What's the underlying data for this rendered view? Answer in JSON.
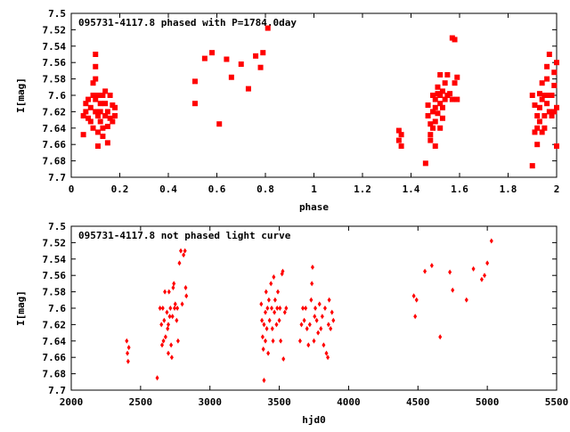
{
  "chart_data": [
    {
      "type": "scatter",
      "title": "095731-4117.8 phased with P=1784.0day",
      "xlabel": "phase",
      "ylabel": "I[mag]",
      "xlim": [
        0,
        2
      ],
      "ylim": [
        7.7,
        7.5
      ],
      "y_inverted": true,
      "grid": false,
      "marker_color": "#ff0000",
      "x_ticks": [
        "0",
        "0.2",
        "0.4",
        "0.6",
        "0.8",
        "1",
        "1.2",
        "1.4",
        "1.6",
        "1.8",
        "2"
      ],
      "y_ticks": [
        "7.5",
        "7.52",
        "7.54",
        "7.56",
        "7.58",
        "7.6",
        "7.62",
        "7.64",
        "7.66",
        "7.68",
        "7.7"
      ],
      "points": [
        [
          0.05,
          7.648
        ],
        [
          0.05,
          7.625
        ],
        [
          0.06,
          7.62
        ],
        [
          0.06,
          7.61
        ],
        [
          0.07,
          7.605
        ],
        [
          0.07,
          7.628
        ],
        [
          0.08,
          7.632
        ],
        [
          0.08,
          7.615
        ],
        [
          0.09,
          7.6
        ],
        [
          0.09,
          7.64
        ],
        [
          0.09,
          7.585
        ],
        [
          0.1,
          7.62
        ],
        [
          0.1,
          7.605
        ],
        [
          0.1,
          7.58
        ],
        [
          0.1,
          7.565
        ],
        [
          0.1,
          7.55
        ],
        [
          0.11,
          7.6
        ],
        [
          0.11,
          7.625
        ],
        [
          0.11,
          7.645
        ],
        [
          0.11,
          7.662
        ],
        [
          0.12,
          7.61
        ],
        [
          0.12,
          7.62
        ],
        [
          0.12,
          7.632
        ],
        [
          0.13,
          7.6
        ],
        [
          0.13,
          7.64
        ],
        [
          0.13,
          7.65
        ],
        [
          0.14,
          7.595
        ],
        [
          0.14,
          7.625
        ],
        [
          0.14,
          7.61
        ],
        [
          0.15,
          7.62
        ],
        [
          0.15,
          7.638
        ],
        [
          0.15,
          7.658
        ],
        [
          0.16,
          7.6
        ],
        [
          0.16,
          7.628
        ],
        [
          0.17,
          7.612
        ],
        [
          0.17,
          7.632
        ],
        [
          0.18,
          7.615
        ],
        [
          0.18,
          7.625
        ],
        [
          0.51,
          7.583
        ],
        [
          0.51,
          7.61
        ],
        [
          0.55,
          7.555
        ],
        [
          0.58,
          7.548
        ],
        [
          0.61,
          7.635
        ],
        [
          0.64,
          7.556
        ],
        [
          0.66,
          7.578
        ],
        [
          0.7,
          7.562
        ],
        [
          0.73,
          7.592
        ],
        [
          0.76,
          7.552
        ],
        [
          0.78,
          7.566
        ],
        [
          0.79,
          7.548
        ],
        [
          0.81,
          7.518
        ],
        [
          1.35,
          7.643
        ],
        [
          1.35,
          7.655
        ],
        [
          1.36,
          7.648
        ],
        [
          1.36,
          7.662
        ],
        [
          1.46,
          7.683
        ],
        [
          1.47,
          7.612
        ],
        [
          1.47,
          7.625
        ],
        [
          1.48,
          7.635
        ],
        [
          1.48,
          7.648
        ],
        [
          1.48,
          7.655
        ],
        [
          1.49,
          7.6
        ],
        [
          1.49,
          7.62
        ],
        [
          1.49,
          7.64
        ],
        [
          1.5,
          7.605
        ],
        [
          1.5,
          7.615
        ],
        [
          1.5,
          7.632
        ],
        [
          1.5,
          7.662
        ],
        [
          1.51,
          7.59
        ],
        [
          1.51,
          7.598
        ],
        [
          1.51,
          7.622
        ],
        [
          1.52,
          7.6
        ],
        [
          1.52,
          7.61
        ],
        [
          1.52,
          7.64
        ],
        [
          1.52,
          7.575
        ],
        [
          1.53,
          7.595
        ],
        [
          1.53,
          7.615
        ],
        [
          1.53,
          7.628
        ],
        [
          1.54,
          7.605
        ],
        [
          1.54,
          7.585
        ],
        [
          1.55,
          7.6
        ],
        [
          1.55,
          7.575
        ],
        [
          1.56,
          7.598
        ],
        [
          1.57,
          7.53
        ],
        [
          1.57,
          7.605
        ],
        [
          1.58,
          7.585
        ],
        [
          1.58,
          7.532
        ],
        [
          1.59,
          7.578
        ],
        [
          1.59,
          7.605
        ],
        [
          1.9,
          7.686
        ],
        [
          1.9,
          7.6
        ],
        [
          1.91,
          7.645
        ],
        [
          1.91,
          7.612
        ],
        [
          1.92,
          7.625
        ],
        [
          1.92,
          7.64
        ],
        [
          1.92,
          7.66
        ],
        [
          1.93,
          7.598
        ],
        [
          1.93,
          7.615
        ],
        [
          1.93,
          7.632
        ],
        [
          1.94,
          7.605
        ],
        [
          1.94,
          7.645
        ],
        [
          1.94,
          7.585
        ],
        [
          1.95,
          7.6
        ],
        [
          1.95,
          7.625
        ],
        [
          1.95,
          7.64
        ],
        [
          1.96,
          7.61
        ],
        [
          1.96,
          7.58
        ],
        [
          1.96,
          7.565
        ],
        [
          1.97,
          7.62
        ],
        [
          1.97,
          7.6
        ],
        [
          1.97,
          7.55
        ],
        [
          1.98,
          7.625
        ],
        [
          1.98,
          7.6
        ],
        [
          1.99,
          7.588
        ],
        [
          1.99,
          7.572
        ],
        [
          1.99,
          7.62
        ],
        [
          2.0,
          7.662
        ],
        [
          2.0,
          7.615
        ],
        [
          2.0,
          7.56
        ]
      ]
    },
    {
      "type": "scatter",
      "title": "095731-4117.8 not phased light curve",
      "xlabel": "hjd0",
      "ylabel": "I[mag]",
      "xlim": [
        2000,
        5500
      ],
      "ylim": [
        7.7,
        7.5
      ],
      "y_inverted": true,
      "grid": false,
      "marker_color": "#ff0000",
      "x_ticks": [
        "2000",
        "2500",
        "3000",
        "3500",
        "4000",
        "4500",
        "5000",
        "5500"
      ],
      "y_ticks": [
        "7.5",
        "7.52",
        "7.54",
        "7.56",
        "7.58",
        "7.6",
        "7.62",
        "7.64",
        "7.66",
        "7.68",
        "7.7"
      ],
      "points": [
        [
          2400,
          7.64
        ],
        [
          2405,
          7.655
        ],
        [
          2410,
          7.665
        ],
        [
          2415,
          7.648
        ],
        [
          2620,
          7.685
        ],
        [
          2640,
          7.6
        ],
        [
          2650,
          7.62
        ],
        [
          2655,
          7.645
        ],
        [
          2660,
          7.6
        ],
        [
          2665,
          7.64
        ],
        [
          2670,
          7.615
        ],
        [
          2675,
          7.58
        ],
        [
          2680,
          7.635
        ],
        [
          2690,
          7.605
        ],
        [
          2695,
          7.625
        ],
        [
          2700,
          7.62
        ],
        [
          2700,
          7.655
        ],
        [
          2705,
          7.58
        ],
        [
          2710,
          7.61
        ],
        [
          2715,
          7.6
        ],
        [
          2720,
          7.645
        ],
        [
          2725,
          7.66
        ],
        [
          2730,
          7.61
        ],
        [
          2735,
          7.575
        ],
        [
          2740,
          7.57
        ],
        [
          2745,
          7.6
        ],
        [
          2750,
          7.595
        ],
        [
          2760,
          7.615
        ],
        [
          2765,
          7.6
        ],
        [
          2770,
          7.64
        ],
        [
          2780,
          7.545
        ],
        [
          2790,
          7.53
        ],
        [
          2800,
          7.595
        ],
        [
          2810,
          7.535
        ],
        [
          2820,
          7.53
        ],
        [
          2825,
          7.575
        ],
        [
          2830,
          7.585
        ],
        [
          3370,
          7.595
        ],
        [
          3375,
          7.615
        ],
        [
          3380,
          7.635
        ],
        [
          3385,
          7.65
        ],
        [
          3390,
          7.688
        ],
        [
          3390,
          7.62
        ],
        [
          3400,
          7.605
        ],
        [
          3400,
          7.64
        ],
        [
          3405,
          7.58
        ],
        [
          3410,
          7.625
        ],
        [
          3415,
          7.6
        ],
        [
          3420,
          7.655
        ],
        [
          3425,
          7.59
        ],
        [
          3430,
          7.615
        ],
        [
          3440,
          7.57
        ],
        [
          3445,
          7.6
        ],
        [
          3450,
          7.625
        ],
        [
          3455,
          7.64
        ],
        [
          3460,
          7.562
        ],
        [
          3465,
          7.605
        ],
        [
          3470,
          7.59
        ],
        [
          3480,
          7.62
        ],
        [
          3485,
          7.6
        ],
        [
          3490,
          7.58
        ],
        [
          3500,
          7.615
        ],
        [
          3505,
          7.6
        ],
        [
          3510,
          7.64
        ],
        [
          3520,
          7.558
        ],
        [
          3525,
          7.555
        ],
        [
          3530,
          7.662
        ],
        [
          3540,
          7.605
        ],
        [
          3550,
          7.6
        ],
        [
          3650,
          7.64
        ],
        [
          3660,
          7.62
        ],
        [
          3670,
          7.6
        ],
        [
          3680,
          7.615
        ],
        [
          3690,
          7.6
        ],
        [
          3700,
          7.625
        ],
        [
          3710,
          7.645
        ],
        [
          3720,
          7.62
        ],
        [
          3730,
          7.59
        ],
        [
          3735,
          7.57
        ],
        [
          3740,
          7.55
        ],
        [
          3750,
          7.64
        ],
        [
          3755,
          7.61
        ],
        [
          3760,
          7.6
        ],
        [
          3770,
          7.615
        ],
        [
          3780,
          7.63
        ],
        [
          3790,
          7.595
        ],
        [
          3800,
          7.625
        ],
        [
          3810,
          7.61
        ],
        [
          3820,
          7.645
        ],
        [
          3830,
          7.6
        ],
        [
          3840,
          7.655
        ],
        [
          3850,
          7.66
        ],
        [
          3855,
          7.62
        ],
        [
          3860,
          7.59
        ],
        [
          3870,
          7.625
        ],
        [
          3880,
          7.605
        ],
        [
          3890,
          7.615
        ],
        [
          4470,
          7.585
        ],
        [
          4480,
          7.61
        ],
        [
          4490,
          7.59
        ],
        [
          4550,
          7.555
        ],
        [
          4600,
          7.548
        ],
        [
          4660,
          7.635
        ],
        [
          4730,
          7.556
        ],
        [
          4750,
          7.578
        ],
        [
          4850,
          7.59
        ],
        [
          4900,
          7.552
        ],
        [
          4960,
          7.565
        ],
        [
          4980,
          7.56
        ],
        [
          5000,
          7.545
        ],
        [
          5030,
          7.518
        ]
      ]
    }
  ]
}
